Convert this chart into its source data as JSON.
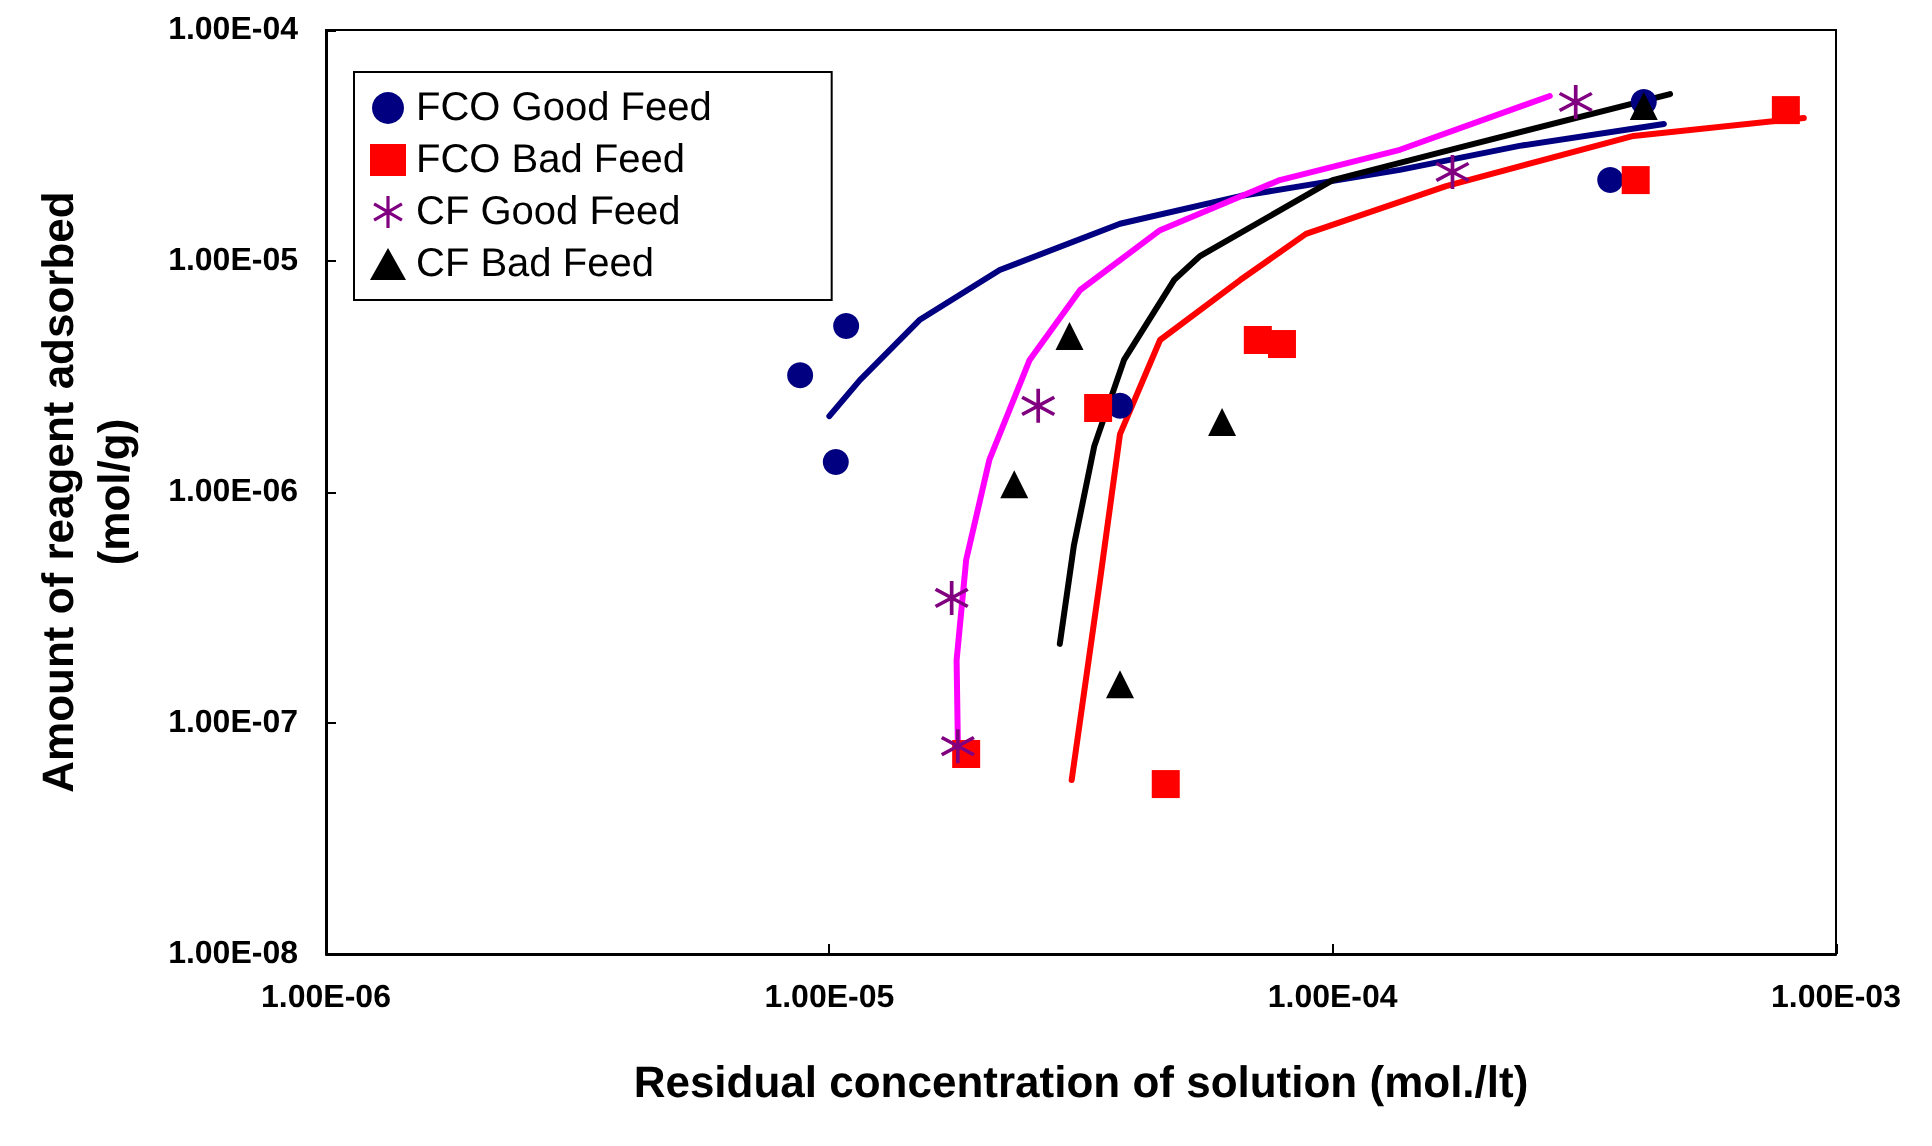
{
  "chart_data": {
    "type": "scatter",
    "xlabel": "Residual concentration of solution (mol./lt)",
    "ylabel": "Amount of reagent adsorbed\n(mol/g)",
    "log": "xy",
    "grid": false,
    "legend": "top left",
    "xlim": [
      1e-06,
      0.001
    ],
    "ylim": [
      1e-08,
      0.0001
    ],
    "xticks": [
      {
        "value": 1e-06,
        "label": "1.00E-06"
      },
      {
        "value": 1e-05,
        "label": "1.00E-05"
      },
      {
        "value": 0.0001,
        "label": "1.00E-04"
      },
      {
        "value": 0.001,
        "label": "1.00E-03"
      }
    ],
    "yticks": [
      {
        "value": 1e-08,
        "label": "1.00E-08"
      },
      {
        "value": 1e-07,
        "label": "1.00E-07"
      },
      {
        "value": 1e-06,
        "label": "1.00E-06"
      },
      {
        "value": 1e-05,
        "label": "1.00E-05"
      },
      {
        "value": 0.0001,
        "label": "1.00E-04"
      }
    ],
    "series": [
      {
        "type": "line",
        "color": "#000080",
        "marker": "none",
        "line_style": "solid",
        "x": [
          1e-05,
          1.15e-05,
          1.51e-05,
          2.18e-05,
          3.78e-05,
          6.55e-05,
          0.000136,
          0.000235,
          0.000455
        ],
        "values": [
          2.13e-06,
          3.05e-06,
          5.55e-06,
          9.14e-06,
          1.45e-05,
          1.91e-05,
          2.48e-05,
          3.15e-05,
          3.92e-05
        ]
      },
      {
        "type": "line",
        "color": "#ff00ff",
        "marker": "none",
        "line_style": "solid",
        "x": [
          1.8e-05,
          1.79e-05,
          1.87e-05,
          2.08e-05,
          2.5e-05,
          3.15e-05,
          4.54e-05,
          7.85e-05,
          0.000136,
          0.00027
        ],
        "values": [
          8.43e-08,
          1.87e-07,
          5.08e-07,
          1.38e-06,
          3.73e-06,
          7.49e-06,
          1.36e-05,
          2.24e-05,
          3.03e-05,
          5.18e-05
        ]
      },
      {
        "type": "line",
        "color": "#000000",
        "marker": "none",
        "line_style": "solid",
        "x": [
          2.87e-05,
          3.06e-05,
          3.36e-05,
          3.85e-05,
          4.84e-05,
          5.45e-05,
          0.0001,
          0.000184,
          0.000468
        ],
        "values": [
          2.2e-07,
          5.84e-07,
          1.58e-06,
          3.73e-06,
          8.27e-06,
          1.05e-05,
          2.24e-05,
          3.15e-05,
          5.28e-05
        ]
      },
      {
        "type": "line",
        "color": "#ff0000",
        "marker": "none",
        "line_style": "solid",
        "x": [
          3.03e-05,
          3.45e-05,
          3.78e-05,
          4.54e-05,
          6.55e-05,
          8.85e-05,
          0.000168,
          0.000396,
          0.000863
        ],
        "values": [
          5.66e-08,
          4.16e-07,
          1.78e-06,
          4.55e-06,
          8.27e-06,
          1.31e-05,
          2.11e-05,
          3.48e-05,
          4.16e-05
        ]
      },
      {
        "name": "FCO Good Feed",
        "color": "#000080",
        "marker": "circle",
        "x": [
          8.75e-06,
          1.08e-05,
          1.03e-05,
          3.78e-05,
          0.000356,
          0.000415
        ],
        "values": [
          3.2e-06,
          5.23e-06,
          1.35e-06,
          2.36e-06,
          2.24e-05,
          4.88e-05
        ]
      },
      {
        "name": "FCO Bad Feed",
        "color": "#ff0000",
        "marker": "square",
        "x": [
          3.42e-05,
          1.87e-05,
          4.66e-05,
          7.1e-05,
          7.93e-05,
          0.0004,
          0.000795
        ],
        "values": [
          2.31e-06,
          7.34e-08,
          5.44e-08,
          4.55e-06,
          4.37e-06,
          2.24e-05,
          4.5e-05
        ]
      },
      {
        "name": "CF Good Feed",
        "color": "#800080",
        "marker": "cross",
        "x": [
          1.75e-05,
          1.8e-05,
          2.6e-05,
          0.000173,
          0.000304
        ],
        "values": [
          3.48e-07,
          7.94e-08,
          2.36e-06,
          2.43e-05,
          4.88e-05
        ]
      },
      {
        "name": "CF Bad Feed",
        "color": "#000000",
        "marker": "triangle",
        "x": [
          3e-05,
          2.33e-05,
          3.78e-05,
          6.03e-05,
          0.000415
        ],
        "values": [
          4.73e-06,
          1.08e-06,
          1.47e-07,
          2.01e-06,
          4.69e-05
        ]
      }
    ]
  }
}
